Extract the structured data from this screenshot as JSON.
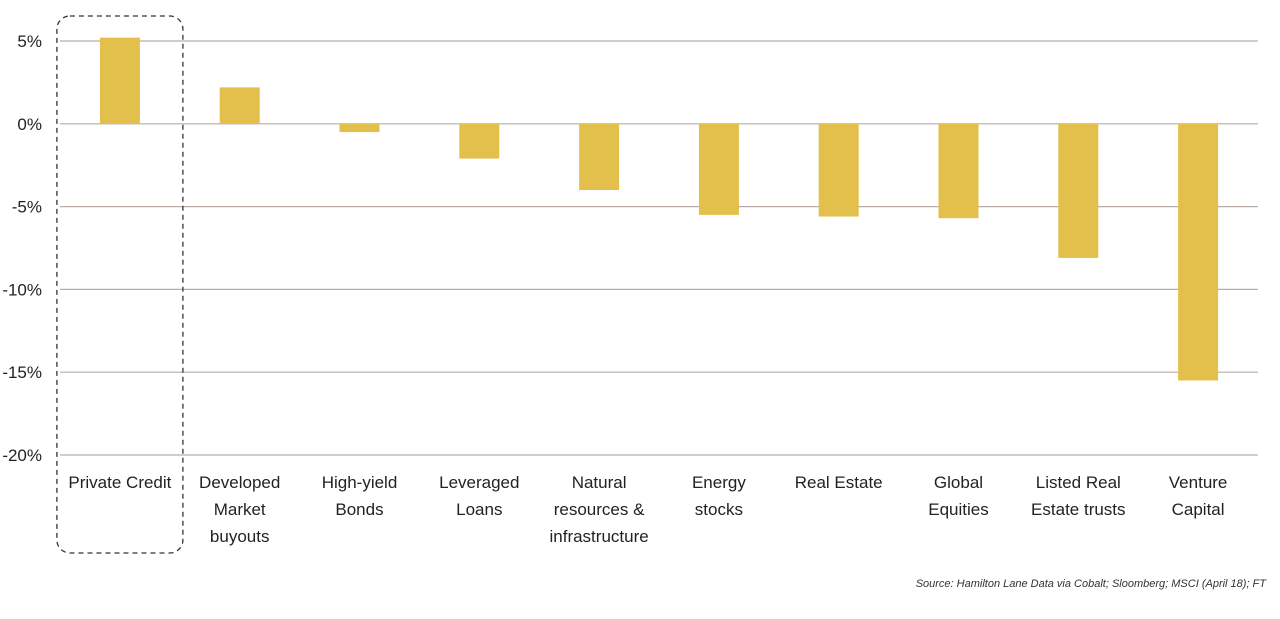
{
  "chart_data": {
    "type": "bar",
    "categories": [
      "Private Credit",
      "Developed Market buyouts",
      "High-yield Bonds",
      "Leveraged Loans",
      "Natural resources & infrastructure",
      "Energy stocks",
      "Real Estate",
      "Global Equities",
      "Listed Real Estate trusts",
      "Venture Capital"
    ],
    "category_lines": [
      [
        "Private Credit"
      ],
      [
        "Developed",
        "Market",
        "buyouts"
      ],
      [
        "High-yield",
        "Bonds"
      ],
      [
        "Leveraged",
        "Loans"
      ],
      [
        "Natural",
        "resources &",
        "infrastructure"
      ],
      [
        "Energy",
        "stocks"
      ],
      [
        "Real Estate"
      ],
      [
        "Global",
        "Equities"
      ],
      [
        "Listed Real",
        "Estate trusts"
      ],
      [
        "Venture",
        "Capital"
      ]
    ],
    "values": [
      5.2,
      2.2,
      -0.5,
      -2.1,
      -4.0,
      -5.5,
      -5.6,
      -5.7,
      -8.1,
      -15.5
    ],
    "ylim": [
      -20,
      5
    ],
    "yticks": [
      5,
      0,
      -5,
      -10,
      -15,
      -20
    ],
    "ytick_labels": [
      "5%",
      "0%",
      "-5%",
      "-10%",
      "-15%",
      "-20%"
    ],
    "grid": true,
    "bar_color": "#e3c04c",
    "grid_color": "#b9ada6",
    "highlight_category": "Private Credit",
    "source": "Source: Hamilton Lane Data via Cobalt; Sloomberg; MSCI (April 18); FT"
  }
}
